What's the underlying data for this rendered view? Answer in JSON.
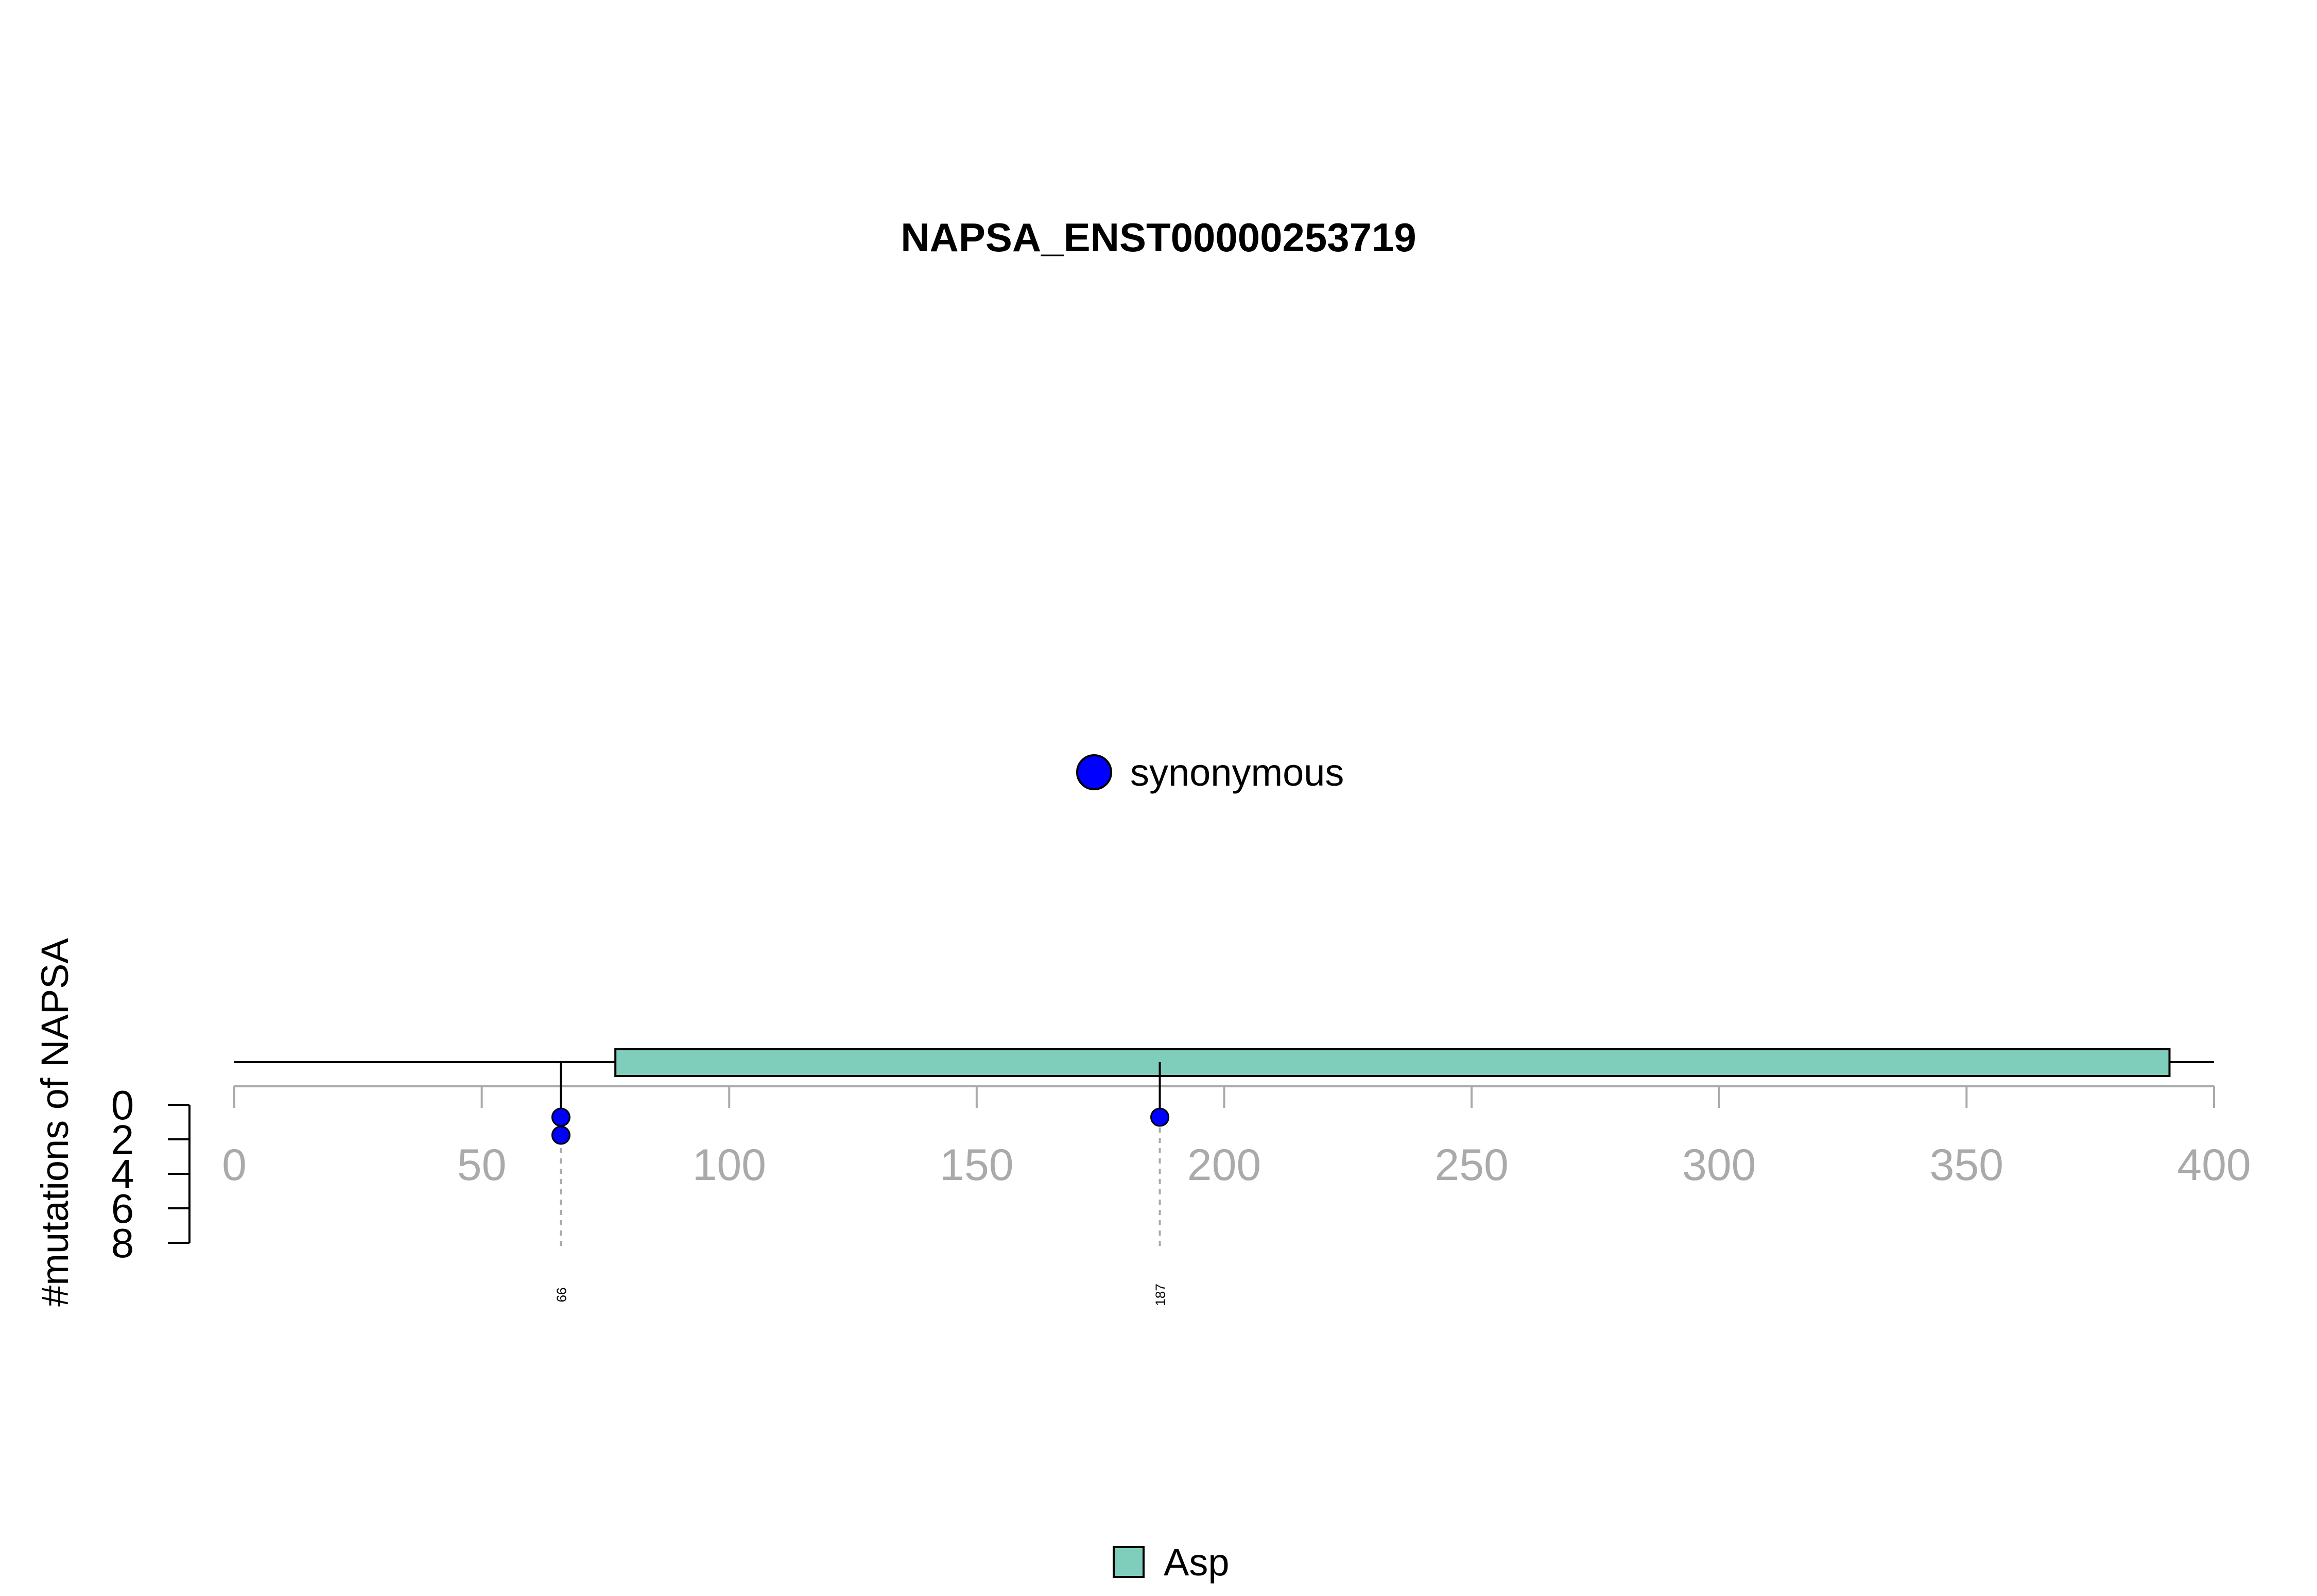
{
  "chart_data": {
    "type": "lollipop",
    "title": "NAPSA_ENST00000253719",
    "ylabel": "#mutations of NAPSA",
    "x_range": [
      0,
      400
    ],
    "x_ticks": [
      0,
      50,
      100,
      150,
      200,
      250,
      300,
      350,
      400
    ],
    "y_ticks": [
      0,
      2,
      4,
      6,
      8
    ],
    "protein_length": 400,
    "domains": [
      {
        "name": "Asp",
        "start": 77,
        "end": 391,
        "color": "#7fcdbb"
      }
    ],
    "mutations": [
      {
        "position": 66,
        "count": 2,
        "type": "synonymous",
        "label": "66"
      },
      {
        "position": 187,
        "count": 1,
        "type": "synonymous",
        "label": "187"
      }
    ],
    "mutation_legend": [
      {
        "name": "synonymous",
        "color": "#0000ff"
      }
    ],
    "domain_legend": [
      {
        "name": "Asp",
        "color": "#7fcdbb"
      }
    ]
  }
}
